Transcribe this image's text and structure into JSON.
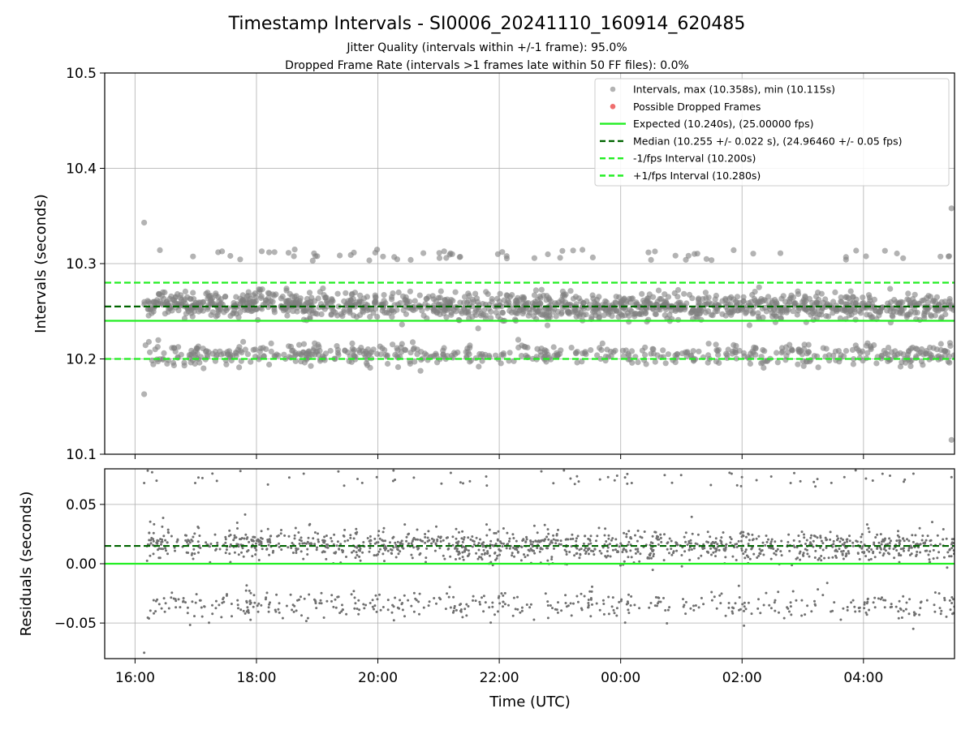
{
  "chart_data": {
    "type": "scatter",
    "title": "Timestamp Intervals - SI0006_20241110_160914_620485",
    "subtitles": [
      "Jitter Quality (intervals within +/-1 frame): 95.0%",
      "Dropped Frame Rate (intervals >1 frames late within 50 FF files): 0.0%"
    ],
    "x_axis": {
      "label": "Time (UTC)",
      "range_hours_since_1600": [
        -0.5,
        13.5
      ],
      "tick_labels": [
        "16:00",
        "18:00",
        "20:00",
        "22:00",
        "00:00",
        "02:00",
        "04:00"
      ],
      "data_start": "16:09",
      "data_end": "05:30"
    },
    "panels": [
      {
        "name": "intervals",
        "ylabel": "Intervals (seconds)",
        "ylim": [
          10.1,
          10.5
        ],
        "yticks": [
          10.1,
          10.2,
          10.3,
          10.4,
          10.5
        ],
        "ytick_labels": [
          "10.1",
          "10.2",
          "10.3",
          "10.4",
          "10.5"
        ],
        "grid": true,
        "legend_position": "top-right",
        "series": [
          {
            "name": "Intervals, max (10.358s), min (10.115s)",
            "kind": "scatter",
            "color": "#808080",
            "max": 10.358,
            "min": 10.115,
            "clusters": [
              {
                "center": 10.255,
                "spread": 0.008
              },
              {
                "center": 10.205,
                "spread": 0.007
              }
            ]
          },
          {
            "name": "Possible Dropped Frames",
            "kind": "scatter",
            "color": "#ee6666",
            "count": 0
          },
          {
            "name": "Expected (10.240s), (25.00000 fps)",
            "kind": "hline",
            "style": "solid",
            "color": "#22ee22",
            "y": 10.24
          },
          {
            "name": "Median (10.255 +/- 0.022 s), (24.96460 +/- 0.05 fps)",
            "kind": "hline",
            "style": "dashed",
            "color": "#006400",
            "y": 10.255
          },
          {
            "name": "-1/fps Interval (10.200s)",
            "kind": "hline",
            "style": "dashed",
            "color": "#22ee22",
            "y": 10.2
          },
          {
            "name": "+1/fps Interval (10.280s)",
            "kind": "hline",
            "style": "dashed",
            "color": "#22ee22",
            "y": 10.28
          }
        ],
        "outliers": [
          [
            0.15,
            10.343
          ],
          [
            0.15,
            10.163
          ],
          [
            13.45,
            10.358
          ],
          [
            13.45,
            10.115
          ]
        ]
      },
      {
        "name": "residuals",
        "ylabel": "Residuals (seconds)",
        "ylim": [
          -0.08,
          0.08
        ],
        "yticks": [
          -0.05,
          0.0,
          0.05
        ],
        "ytick_labels": [
          "−0.05",
          "0.00",
          "0.05"
        ],
        "grid": true,
        "series": [
          {
            "kind": "scatter",
            "color": "#707070",
            "clusters": [
              {
                "center": 0.015,
                "spread": 0.008
              },
              {
                "center": -0.035,
                "spread": 0.007
              }
            ]
          },
          {
            "kind": "hline",
            "style": "solid",
            "color": "#22ee22",
            "y": 0.0
          },
          {
            "kind": "hline",
            "style": "dashed",
            "color": "#006400",
            "y": 0.015
          }
        ]
      }
    ],
    "colors": {
      "expected": "#22ee22",
      "median": "#006400",
      "points": "#808080",
      "dropped": "#ee6666"
    }
  }
}
